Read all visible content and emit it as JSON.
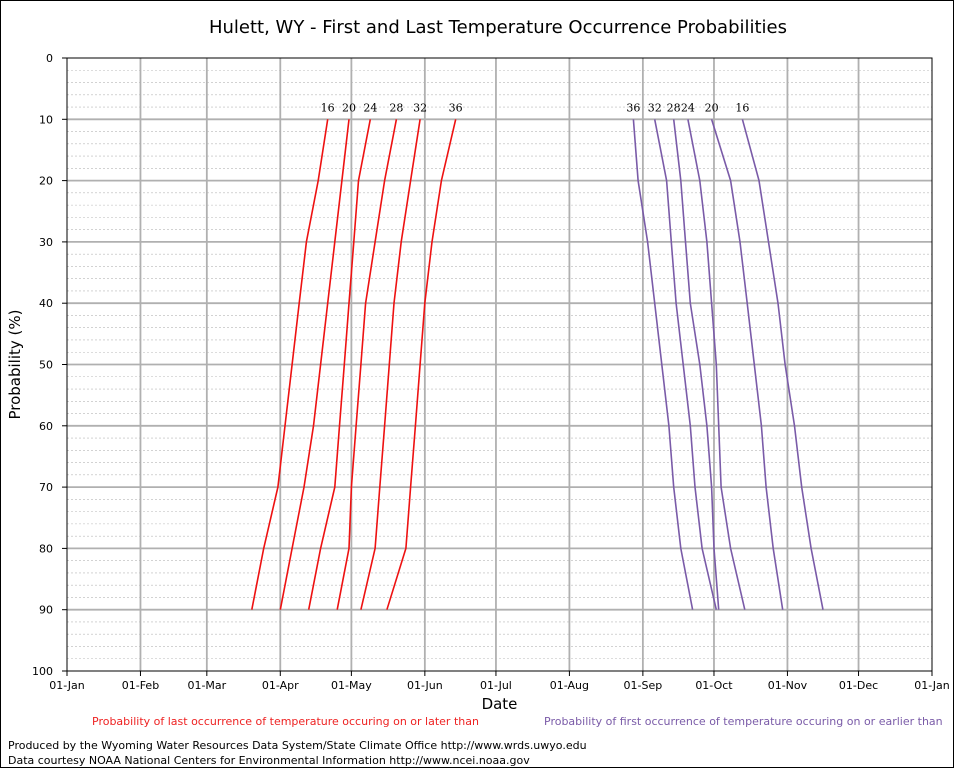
{
  "chart_data": {
    "type": "line",
    "title": "Hulett, WY - First and Last Temperature Occurrence Probabilities",
    "xlabel": "Date",
    "ylabel": "Probability (%)",
    "x_ticks": [
      "01-Jan",
      "01-Feb",
      "01-Mar",
      "01-Apr",
      "01-May",
      "01-Jun",
      "01-Jul",
      "01-Aug",
      "01-Sep",
      "01-Oct",
      "01-Nov",
      "01-Dec",
      "01-Jan"
    ],
    "y_ticks": [
      "0",
      "10",
      "20",
      "30",
      "40",
      "50",
      "60",
      "70",
      "80",
      "90",
      "100"
    ],
    "y_inverted": true,
    "ylim": [
      0,
      100
    ],
    "probabilities": [
      10,
      20,
      30,
      40,
      50,
      60,
      70,
      80,
      90
    ],
    "grid": true,
    "spring_color": "#ee1111",
    "fall_color": "#7a5ba8",
    "spring_series": [
      {
        "name": "16",
        "dates": [
          "2001-04-21",
          "2001-04-17",
          "2001-04-12",
          "2001-04-09",
          "2001-04-06",
          "2001-04-03",
          "2001-03-31",
          "2001-03-25",
          "2001-03-20"
        ]
      },
      {
        "name": "20",
        "dates": [
          "2001-04-30",
          "2001-04-27",
          "2001-04-24",
          "2001-04-21",
          "2001-04-18",
          "2001-04-15",
          "2001-04-11",
          "2001-04-06",
          "2001-04-01"
        ]
      },
      {
        "name": "24",
        "dates": [
          "2001-05-09",
          "2001-05-04",
          "2001-05-02",
          "2001-04-30",
          "2001-04-28",
          "2001-04-26",
          "2001-04-24",
          "2001-04-18",
          "2001-04-13"
        ]
      },
      {
        "name": "28",
        "dates": [
          "2001-05-20",
          "2001-05-15",
          "2001-05-11",
          "2001-05-07",
          "2001-05-05",
          "2001-05-03",
          "2001-05-01",
          "2001-04-30",
          "2001-04-25"
        ]
      },
      {
        "name": "32",
        "dates": [
          "2001-05-30",
          "2001-05-26",
          "2001-05-22",
          "2001-05-19",
          "2001-05-17",
          "2001-05-15",
          "2001-05-13",
          "2001-05-11",
          "2001-05-05"
        ]
      },
      {
        "name": "36",
        "dates": [
          "2001-06-14",
          "2001-06-08",
          "2001-06-04",
          "2001-06-01",
          "2001-05-30",
          "2001-05-28",
          "2001-05-26",
          "2001-05-24",
          "2001-05-16"
        ]
      }
    ],
    "fall_series": [
      {
        "name": "36",
        "dates": [
          "2001-08-28",
          "2001-08-30",
          "2001-09-03",
          "2001-09-06",
          "2001-09-09",
          "2001-09-12",
          "2001-09-14",
          "2001-09-17",
          "2001-09-22"
        ]
      },
      {
        "name": "32",
        "dates": [
          "2001-09-06",
          "2001-09-11",
          "2001-09-13",
          "2001-09-15",
          "2001-09-18",
          "2001-09-21",
          "2001-09-23",
          "2001-09-26",
          "2001-10-02"
        ]
      },
      {
        "name": "28",
        "dates": [
          "2001-09-14",
          "2001-09-17",
          "2001-09-19",
          "2001-09-21",
          "2001-09-25",
          "2001-09-28",
          "2001-09-30",
          "2001-10-01",
          "2001-10-03"
        ]
      },
      {
        "name": "24",
        "dates": [
          "2001-09-20",
          "2001-09-25",
          "2001-09-28",
          "2001-09-30",
          "2001-10-02",
          "2001-10-03",
          "2001-10-04",
          "2001-10-08",
          "2001-10-14"
        ]
      },
      {
        "name": "20",
        "dates": [
          "2001-09-30",
          "2001-10-08",
          "2001-10-12",
          "2001-10-15",
          "2001-10-18",
          "2001-10-21",
          "2001-10-23",
          "2001-10-26",
          "2001-10-30"
        ]
      },
      {
        "name": "16",
        "dates": [
          "2001-10-13",
          "2001-10-20",
          "2001-10-24",
          "2001-10-28",
          "2001-10-31",
          "2001-11-04",
          "2001-11-07",
          "2001-11-11",
          "2001-11-16"
        ]
      }
    ]
  },
  "notes": {
    "last": "Probability of last occurrence of temperature occuring on or later than",
    "first": "Probability of first occurrence of temperature occuring on or earlier than"
  },
  "credits": {
    "line1": "Produced by the Wyoming Water Resources Data System/State Climate Office http://www.wrds.uwyo.edu",
    "line2": "Data courtesy NOAA National Centers for Environmental Information http://www.ncei.noaa.gov"
  }
}
